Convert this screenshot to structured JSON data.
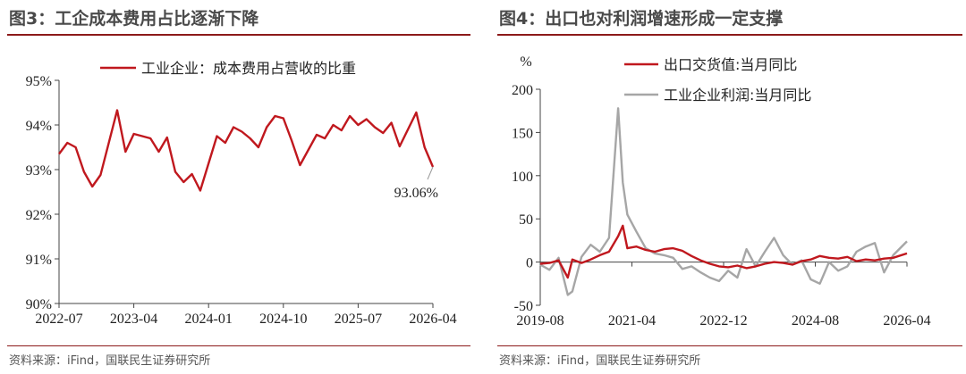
{
  "left": {
    "figure_title": "图3：工企成本费用占比逐渐下降",
    "source": "资料来源：iFind，国联民生证券研究所"
  },
  "right": {
    "figure_title": "图4：出口也对利润增速形成一定支撑",
    "source": "资料来源：iFind，国联民生证券研究所"
  },
  "colors": {
    "red": "#c0181e",
    "gray": "#a6a6a6",
    "brand": "#8c1a1a"
  },
  "chart_data": [
    {
      "type": "line",
      "title": "",
      "ylim": [
        90,
        95
      ],
      "yticks": [
        "90%",
        "91%",
        "92%",
        "93%",
        "94%",
        "95%"
      ],
      "xtick_labels": [
        "2022-07",
        "2023-04",
        "2024-01",
        "2024-10",
        "2025-07",
        "2026-04"
      ],
      "legend_position": "top-center",
      "series": [
        {
          "name": "工业企业：成本费用占营收的比重",
          "color": "#c0181e",
          "x": [
            "2022-07",
            "2022-08",
            "2022-09",
            "2022-10",
            "2022-11",
            "2022-12",
            "2023-02",
            "2023-03",
            "2023-04",
            "2023-05",
            "2023-06",
            "2023-07",
            "2023-08",
            "2023-09",
            "2023-10",
            "2023-11",
            "2023-12",
            "2024-02",
            "2024-03",
            "2024-04",
            "2024-05",
            "2024-06",
            "2024-07",
            "2024-08",
            "2024-09",
            "2024-10",
            "2024-11",
            "2024-12",
            "2025-02",
            "2025-03",
            "2025-04",
            "2025-05",
            "2025-06",
            "2025-07",
            "2025-08",
            "2025-09",
            "2025-10",
            "2025-11",
            "2025-12",
            "2026-02",
            "2026-03",
            "2026-04"
          ],
          "values": [
            93.35,
            93.6,
            93.5,
            92.95,
            92.62,
            92.88,
            94.33,
            93.4,
            93.8,
            93.75,
            93.7,
            93.4,
            93.72,
            92.95,
            92.72,
            92.9,
            92.53,
            93.75,
            93.6,
            93.95,
            93.85,
            93.7,
            93.5,
            93.95,
            94.2,
            94.15,
            93.65,
            93.1,
            93.78,
            93.7,
            94.0,
            93.88,
            94.2,
            94.0,
            94.13,
            93.95,
            93.82,
            94.05,
            93.52,
            94.28,
            93.5,
            93.06
          ]
        }
      ],
      "annotation": "93.06%"
    },
    {
      "type": "line",
      "title": "",
      "ylabel": "%",
      "ylim": [
        -50,
        200
      ],
      "yticks": [
        "-50",
        "0",
        "50",
        "100",
        "150",
        "200"
      ],
      "xtick_labels": [
        "2019-08",
        "2021-04",
        "2022-12",
        "2024-08",
        "2026-04"
      ],
      "legend_position": "top-center",
      "series": [
        {
          "name": "出口交货值:当月同比",
          "color": "#c0181e",
          "x": [
            "2019-08",
            "2019-10",
            "2019-12",
            "2020-02",
            "2020-03",
            "2020-05",
            "2020-07",
            "2020-09",
            "2020-11",
            "2021-01",
            "2021-02",
            "2021-03",
            "2021-05",
            "2021-07",
            "2021-09",
            "2021-11",
            "2022-01",
            "2022-03",
            "2022-05",
            "2022-07",
            "2022-09",
            "2022-11",
            "2023-01",
            "2023-03",
            "2023-05",
            "2023-07",
            "2023-09",
            "2023-11",
            "2024-01",
            "2024-03",
            "2024-05",
            "2024-07",
            "2024-09",
            "2024-11",
            "2025-01",
            "2025-03",
            "2025-05",
            "2025-07",
            "2025-09",
            "2025-11",
            "2026-01",
            "2026-04"
          ],
          "values": [
            -2,
            -1,
            2,
            -18,
            3,
            -1,
            3,
            8,
            12,
            30,
            42,
            16,
            18,
            14,
            12,
            15,
            16,
            13,
            7,
            2,
            -2,
            -5,
            -6,
            -4,
            -7,
            -5,
            -2,
            0,
            -1,
            -3,
            1,
            3,
            7,
            5,
            4,
            6,
            1,
            3,
            2,
            4,
            5,
            10
          ]
        }
      ],
      "series2": {
        "name": "工业企业利润:当月同比",
        "color": "#a6a6a6",
        "x": [
          "2019-08",
          "2019-10",
          "2019-12",
          "2020-02",
          "2020-03",
          "2020-05",
          "2020-07",
          "2020-09",
          "2020-11",
          "2021-01",
          "2021-02",
          "2021-03",
          "2021-05",
          "2021-07",
          "2021-09",
          "2021-11",
          "2022-01",
          "2022-03",
          "2022-05",
          "2022-07",
          "2022-09",
          "2022-11",
          "2023-01",
          "2023-03",
          "2023-05",
          "2023-07",
          "2023-09",
          "2023-11",
          "2024-01",
          "2024-03",
          "2024-05",
          "2024-07",
          "2024-09",
          "2024-11",
          "2025-01",
          "2025-03",
          "2025-05",
          "2025-07",
          "2025-09",
          "2025-11",
          "2026-01",
          "2026-04"
        ],
        "values": [
          -3,
          -9,
          5,
          -38,
          -34,
          6,
          20,
          12,
          28,
          178,
          92,
          55,
          35,
          16,
          10,
          8,
          5,
          -8,
          -5,
          -12,
          -18,
          -22,
          -10,
          -18,
          15,
          -5,
          12,
          28,
          8,
          -3,
          2,
          -20,
          -25,
          0,
          -10,
          -5,
          12,
          18,
          22,
          -12,
          8,
          24
        ]
      }
    }
  ]
}
